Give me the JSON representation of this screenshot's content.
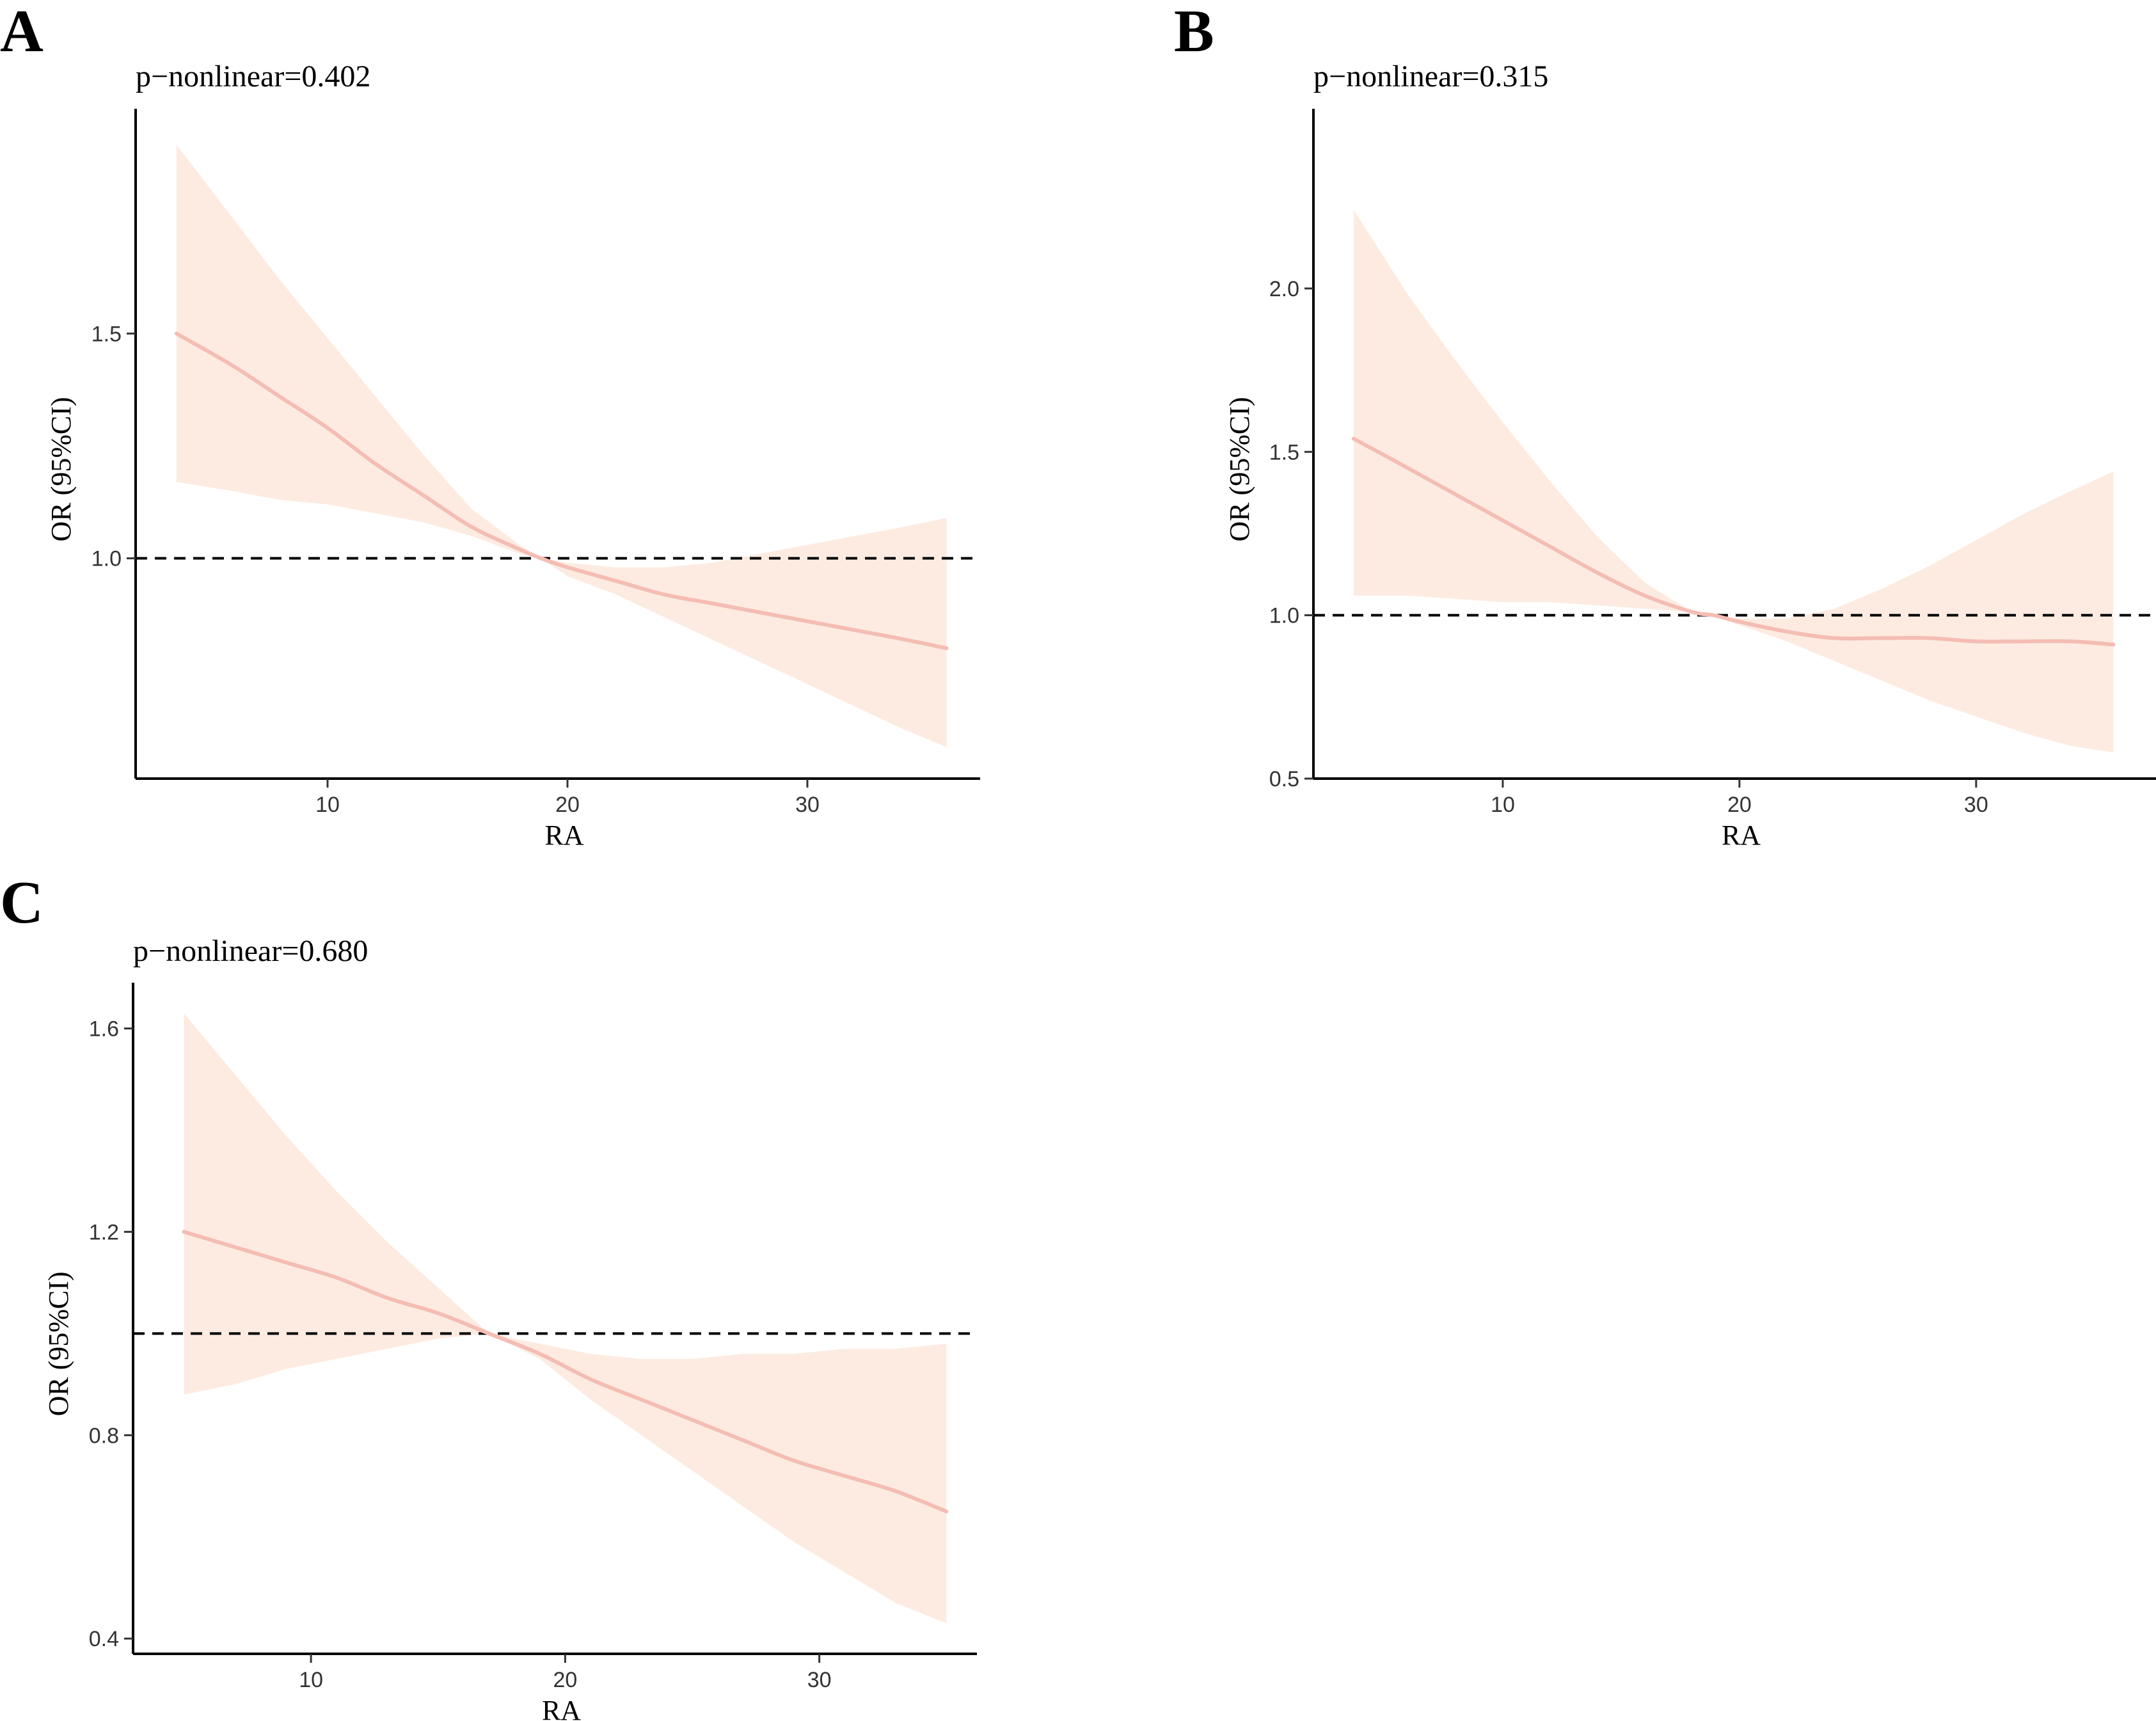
{
  "colors": {
    "band": "#fde6da",
    "curve": "#f4bdb3",
    "axis": "#000000",
    "text": "#000000",
    "background": "#ffffff"
  },
  "chart_data": [
    {
      "type": "line",
      "panel_label": "A",
      "annotation": "p−nonlinear=0.402",
      "xlabel": "RA",
      "ylabel": "OR (95%CI)",
      "xlim": [
        2.0,
        37.2
      ],
      "ylim": [
        0.51,
        2.0
      ],
      "xticks": [
        10,
        20,
        30
      ],
      "xtick_labels": [
        "10",
        "20",
        "30"
      ],
      "yticks": [
        1.0,
        1.5
      ],
      "ytick_labels": [
        "1.0",
        "1.5"
      ],
      "reference_line": 1.0,
      "series": [
        {
          "name": "OR",
          "x": [
            3.7,
            6,
            8,
            10,
            12,
            14,
            16,
            18,
            18.9,
            20,
            22,
            24,
            26,
            28,
            30,
            32,
            34,
            35.8
          ],
          "y": [
            1.5,
            1.43,
            1.36,
            1.29,
            1.21,
            1.14,
            1.07,
            1.02,
            1.0,
            0.98,
            0.95,
            0.92,
            0.9,
            0.88,
            0.86,
            0.84,
            0.82,
            0.8
          ],
          "lower": [
            1.17,
            1.15,
            1.13,
            1.12,
            1.1,
            1.08,
            1.05,
            1.01,
            1.0,
            0.96,
            0.92,
            0.87,
            0.82,
            0.77,
            0.72,
            0.67,
            0.62,
            0.58
          ],
          "upper": [
            1.92,
            1.76,
            1.62,
            1.49,
            1.36,
            1.23,
            1.11,
            1.03,
            1.0,
            0.99,
            0.98,
            0.98,
            0.99,
            1.01,
            1.03,
            1.05,
            1.07,
            1.09
          ]
        }
      ]
    },
    {
      "type": "line",
      "panel_label": "B",
      "annotation": "p−nonlinear=0.315",
      "xlabel": "RA",
      "ylabel": "OR (95%CI)",
      "xlim": [
        2.0,
        37.6
      ],
      "ylim": [
        0.5,
        2.55
      ],
      "xticks": [
        10,
        20,
        30
      ],
      "xtick_labels": [
        "10",
        "20",
        "30"
      ],
      "yticks": [
        0.5,
        1.0,
        1.5,
        2.0
      ],
      "ytick_labels": [
        "0.5",
        "1.0",
        "1.5",
        "2.0"
      ],
      "reference_line": 1.0,
      "series": [
        {
          "name": "OR",
          "x": [
            3.7,
            6,
            8,
            10,
            12,
            14,
            16,
            18,
            18.9,
            20,
            22,
            24,
            26,
            28,
            30,
            32,
            34,
            35.8
          ],
          "y": [
            1.54,
            1.45,
            1.37,
            1.29,
            1.21,
            1.13,
            1.06,
            1.01,
            1.0,
            0.98,
            0.95,
            0.93,
            0.93,
            0.93,
            0.92,
            0.92,
            0.92,
            0.91
          ],
          "lower": [
            1.06,
            1.06,
            1.05,
            1.04,
            1.04,
            1.03,
            1.02,
            1.01,
            1.0,
            0.97,
            0.92,
            0.86,
            0.8,
            0.74,
            0.69,
            0.64,
            0.6,
            0.58
          ],
          "upper": [
            2.24,
            1.98,
            1.78,
            1.59,
            1.41,
            1.24,
            1.1,
            1.01,
            1.0,
            0.99,
            0.99,
            1.02,
            1.08,
            1.15,
            1.23,
            1.31,
            1.38,
            1.44
          ]
        }
      ]
    },
    {
      "type": "line",
      "panel_label": "C",
      "annotation": "p−nonlinear=0.680",
      "xlabel": "RA",
      "ylabel": "OR (95%CI)",
      "xlim": [
        3.0,
        36.2
      ],
      "ylim": [
        0.37,
        1.69
      ],
      "xticks": [
        10,
        20,
        30
      ],
      "xtick_labels": [
        "10",
        "20",
        "30"
      ],
      "yticks": [
        0.4,
        0.8,
        1.2,
        1.6
      ],
      "ytick_labels": [
        "0.4",
        "0.8",
        "1.2",
        "1.6"
      ],
      "reference_line": 1.0,
      "series": [
        {
          "name": "OR",
          "x": [
            5,
            7,
            9,
            11,
            13,
            15,
            17,
            19,
            21,
            23,
            25,
            27,
            29,
            31,
            33,
            35
          ],
          "y": [
            1.2,
            1.17,
            1.14,
            1.11,
            1.07,
            1.04,
            1.0,
            0.96,
            0.91,
            0.87,
            0.83,
            0.79,
            0.75,
            0.72,
            0.69,
            0.65
          ],
          "lower": [
            0.88,
            0.9,
            0.93,
            0.95,
            0.97,
            0.99,
            1.0,
            0.95,
            0.87,
            0.8,
            0.73,
            0.66,
            0.59,
            0.53,
            0.47,
            0.43
          ],
          "upper": [
            1.63,
            1.51,
            1.39,
            1.28,
            1.18,
            1.09,
            1.0,
            0.98,
            0.96,
            0.95,
            0.95,
            0.96,
            0.96,
            0.97,
            0.97,
            0.98
          ]
        }
      ]
    }
  ]
}
